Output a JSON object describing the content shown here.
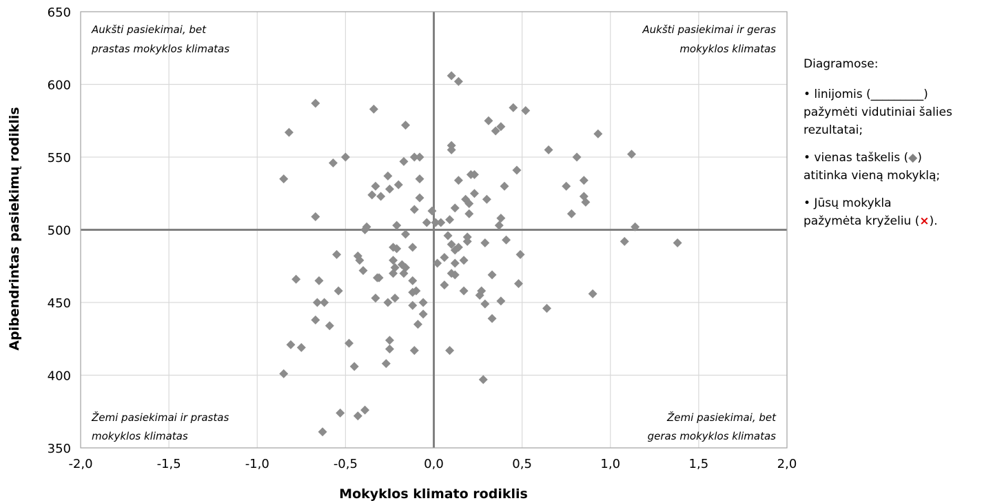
{
  "chart_data": {
    "type": "scatter",
    "xlabel": "Mokyklos klimato rodiklis",
    "ylabel": "Apibendrintas pasiekimų rodiklis",
    "xlim": [
      -2.0,
      2.0
    ],
    "ylim": [
      350,
      650
    ],
    "x_ticks": [
      -2.0,
      -1.5,
      -1.0,
      -0.5,
      0.0,
      0.5,
      1.0,
      1.5,
      2.0
    ],
    "x_tick_labels": [
      "-2,0",
      "-1,5",
      "-1,0",
      "-0,5",
      "0,0",
      "0,5",
      "1,0",
      "1,5",
      "2,0"
    ],
    "y_ticks": [
      350,
      400,
      450,
      500,
      550,
      600,
      650
    ],
    "y_tick_labels": [
      "350",
      "400",
      "450",
      "500",
      "550",
      "600",
      "650"
    ],
    "grid": true,
    "reference_lines": {
      "x": 0.0,
      "y": 500
    },
    "marker_color": "#8c8c8c",
    "grid_color": "#d9d9d9",
    "reference_line_color": "#808080",
    "quadrant_labels": {
      "top_left": [
        "Aukšti pasiekimai, bet",
        "prastas mokyklos klimatas"
      ],
      "top_right": [
        "Aukšti pasiekimai ir geras",
        "mokyklos klimatas"
      ],
      "bottom_left": [
        "Žemi pasiekimai ir prastas",
        "mokyklos klimatas"
      ],
      "bottom_right": [
        "Žemi pasiekimai, bet",
        "geras mokyklos klimatas"
      ]
    },
    "points": [
      {
        "x": 0.1,
        "y": 606
      },
      {
        "x": 0.14,
        "y": 602
      },
      {
        "x": -0.67,
        "y": 587
      },
      {
        "x": -0.34,
        "y": 583
      },
      {
        "x": -0.16,
        "y": 572
      },
      {
        "x": 0.45,
        "y": 584
      },
      {
        "x": 0.52,
        "y": 582
      },
      {
        "x": 0.31,
        "y": 575
      },
      {
        "x": 0.38,
        "y": 571
      },
      {
        "x": 0.35,
        "y": 568
      },
      {
        "x": 0.93,
        "y": 566
      },
      {
        "x": -0.82,
        "y": 567
      },
      {
        "x": 0.1,
        "y": 558
      },
      {
        "x": 0.1,
        "y": 555
      },
      {
        "x": 0.65,
        "y": 555
      },
      {
        "x": 1.12,
        "y": 552
      },
      {
        "x": 0.81,
        "y": 550
      },
      {
        "x": -0.5,
        "y": 550
      },
      {
        "x": -0.57,
        "y": 546
      },
      {
        "x": -0.11,
        "y": 550
      },
      {
        "x": -0.08,
        "y": 550
      },
      {
        "x": -0.17,
        "y": 547
      },
      {
        "x": -0.26,
        "y": 537
      },
      {
        "x": -0.85,
        "y": 535
      },
      {
        "x": -0.08,
        "y": 535
      },
      {
        "x": 0.14,
        "y": 534
      },
      {
        "x": 0.85,
        "y": 534
      },
      {
        "x": 0.47,
        "y": 541
      },
      {
        "x": 0.23,
        "y": 538
      },
      {
        "x": 0.21,
        "y": 538
      },
      {
        "x": -0.33,
        "y": 530
      },
      {
        "x": -0.2,
        "y": 531
      },
      {
        "x": -0.25,
        "y": 528
      },
      {
        "x": -0.35,
        "y": 524
      },
      {
        "x": -0.3,
        "y": 523
      },
      {
        "x": -0.08,
        "y": 522
      },
      {
        "x": 0.4,
        "y": 530
      },
      {
        "x": 0.75,
        "y": 530
      },
      {
        "x": 0.23,
        "y": 525
      },
      {
        "x": 0.18,
        "y": 521
      },
      {
        "x": 0.2,
        "y": 518
      },
      {
        "x": 0.3,
        "y": 521
      },
      {
        "x": 0.85,
        "y": 523
      },
      {
        "x": 0.86,
        "y": 519
      },
      {
        "x": 0.12,
        "y": 515
      },
      {
        "x": -0.11,
        "y": 514
      },
      {
        "x": 0.2,
        "y": 511
      },
      {
        "x": 0.78,
        "y": 511
      },
      {
        "x": -0.01,
        "y": 513
      },
      {
        "x": -0.67,
        "y": 509
      },
      {
        "x": 0.38,
        "y": 508
      },
      {
        "x": 0.09,
        "y": 507
      },
      {
        "x": 0.01,
        "y": 505
      },
      {
        "x": 0.04,
        "y": 505
      },
      {
        "x": -0.04,
        "y": 505
      },
      {
        "x": 0.37,
        "y": 503
      },
      {
        "x": -0.21,
        "y": 503
      },
      {
        "x": -0.38,
        "y": 502
      },
      {
        "x": -0.39,
        "y": 500
      },
      {
        "x": 1.14,
        "y": 502
      },
      {
        "x": -0.16,
        "y": 497
      },
      {
        "x": 0.08,
        "y": 496
      },
      {
        "x": 0.19,
        "y": 495
      },
      {
        "x": 0.19,
        "y": 492
      },
      {
        "x": 1.08,
        "y": 492
      },
      {
        "x": 1.38,
        "y": 491
      },
      {
        "x": 0.29,
        "y": 491
      },
      {
        "x": 0.41,
        "y": 493
      },
      {
        "x": 0.1,
        "y": 490
      },
      {
        "x": 0.14,
        "y": 488
      },
      {
        "x": -0.23,
        "y": 488
      },
      {
        "x": -0.12,
        "y": 488
      },
      {
        "x": -0.21,
        "y": 487
      },
      {
        "x": 0.12,
        "y": 486
      },
      {
        "x": -0.55,
        "y": 483
      },
      {
        "x": -0.43,
        "y": 482
      },
      {
        "x": 0.49,
        "y": 483
      },
      {
        "x": 0.06,
        "y": 481
      },
      {
        "x": -0.42,
        "y": 479
      },
      {
        "x": -0.23,
        "y": 479
      },
      {
        "x": -0.18,
        "y": 476
      },
      {
        "x": 0.02,
        "y": 477
      },
      {
        "x": 0.12,
        "y": 477
      },
      {
        "x": 0.17,
        "y": 479
      },
      {
        "x": -0.22,
        "y": 474
      },
      {
        "x": -0.16,
        "y": 474
      },
      {
        "x": -0.4,
        "y": 472
      },
      {
        "x": -0.23,
        "y": 470
      },
      {
        "x": -0.17,
        "y": 470
      },
      {
        "x": 0.1,
        "y": 470
      },
      {
        "x": 0.12,
        "y": 469
      },
      {
        "x": 0.33,
        "y": 469
      },
      {
        "x": -0.32,
        "y": 467
      },
      {
        "x": -0.31,
        "y": 467
      },
      {
        "x": -0.12,
        "y": 465
      },
      {
        "x": -0.78,
        "y": 466
      },
      {
        "x": -0.65,
        "y": 465
      },
      {
        "x": 0.06,
        "y": 462
      },
      {
        "x": 0.48,
        "y": 463
      },
      {
        "x": -0.54,
        "y": 458
      },
      {
        "x": -0.12,
        "y": 457
      },
      {
        "x": -0.1,
        "y": 458
      },
      {
        "x": 0.17,
        "y": 458
      },
      {
        "x": 0.27,
        "y": 458
      },
      {
        "x": 0.26,
        "y": 455
      },
      {
        "x": 0.9,
        "y": 456
      },
      {
        "x": -0.33,
        "y": 453
      },
      {
        "x": -0.22,
        "y": 453
      },
      {
        "x": 0.38,
        "y": 451
      },
      {
        "x": -0.66,
        "y": 450
      },
      {
        "x": -0.62,
        "y": 450
      },
      {
        "x": -0.26,
        "y": 450
      },
      {
        "x": -0.12,
        "y": 448
      },
      {
        "x": -0.06,
        "y": 450
      },
      {
        "x": 0.29,
        "y": 449
      },
      {
        "x": 0.64,
        "y": 446
      },
      {
        "x": -0.06,
        "y": 442
      },
      {
        "x": 0.33,
        "y": 439
      },
      {
        "x": -0.67,
        "y": 438
      },
      {
        "x": -0.59,
        "y": 434
      },
      {
        "x": -0.09,
        "y": 435
      },
      {
        "x": -0.25,
        "y": 424
      },
      {
        "x": -0.48,
        "y": 422
      },
      {
        "x": -0.81,
        "y": 421
      },
      {
        "x": -0.75,
        "y": 419
      },
      {
        "x": -0.25,
        "y": 418
      },
      {
        "x": -0.11,
        "y": 417
      },
      {
        "x": 0.09,
        "y": 417
      },
      {
        "x": -0.27,
        "y": 408
      },
      {
        "x": -0.45,
        "y": 406
      },
      {
        "x": -0.85,
        "y": 401
      },
      {
        "x": 0.28,
        "y": 397
      },
      {
        "x": -0.39,
        "y": 376
      },
      {
        "x": -0.53,
        "y": 374
      },
      {
        "x": -0.43,
        "y": 372
      },
      {
        "x": -0.63,
        "y": 361
      }
    ]
  },
  "note": {
    "title": "Diagramose:",
    "line1_a": "• linijomis  (_________)",
    "line1_b": "pažymėti vidutiniai šalies rezultatai;",
    "line2_a": "•  vienas taškelis (",
    "diamond_symbol": "◆",
    "line2_b": ")",
    "line2_c": "atitinka vieną mokyklą;",
    "line3_a": "•  Jūsų mokykla",
    "line3_b": "pažymėta kryželiu (",
    "cross_symbol": "×",
    "line3_c": ")."
  }
}
